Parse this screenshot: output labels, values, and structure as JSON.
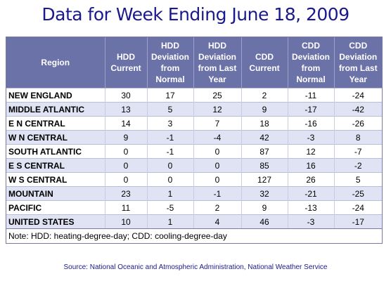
{
  "title": "Data for Week Ending June 18, 2009",
  "source": "Source:  National Oceanic and Atmospheric Administration, National Weather Service",
  "note": "Note: HDD: heating-degree-day; CDD: cooling-degree-day",
  "colors": {
    "title": "#1a1a8c",
    "header_bg": "#6b72a8",
    "alt_row_bg": "#dfe3f3"
  },
  "chart_data": {
    "type": "table",
    "columns": [
      "Region",
      "HDD Current",
      "HDD Deviation from Normal",
      "HDD Deviation from Last Year",
      "CDD Current",
      "CDD Deviation from Normal",
      "CDD Deviation from Last Year"
    ],
    "rows": [
      [
        "NEW ENGLAND",
        "30",
        "17",
        "25",
        "2",
        "-11",
        "-24"
      ],
      [
        "MIDDLE ATLANTIC",
        "13",
        "5",
        "12",
        "9",
        "-17",
        "-42"
      ],
      [
        "E N CENTRAL",
        "14",
        "3",
        "7",
        "18",
        "-16",
        "-26"
      ],
      [
        "W N CENTRAL",
        "9",
        "-1",
        "-4",
        "42",
        "-3",
        "8"
      ],
      [
        "SOUTH ATLANTIC",
        "0",
        "-1",
        "0",
        "87",
        "12",
        "-7"
      ],
      [
        "E S CENTRAL",
        "0",
        "0",
        "0",
        "85",
        "16",
        "-2"
      ],
      [
        "W S CENTRAL",
        "0",
        "0",
        "0",
        "127",
        "26",
        "5"
      ],
      [
        "MOUNTAIN",
        "23",
        "1",
        "-1",
        "32",
        "-21",
        "-25"
      ],
      [
        "PACIFIC",
        "11",
        "-5",
        "2",
        "9",
        "-13",
        "-24"
      ],
      [
        "UNITED STATES",
        "10",
        "1",
        "4",
        "46",
        "-3",
        "-17"
      ]
    ]
  }
}
